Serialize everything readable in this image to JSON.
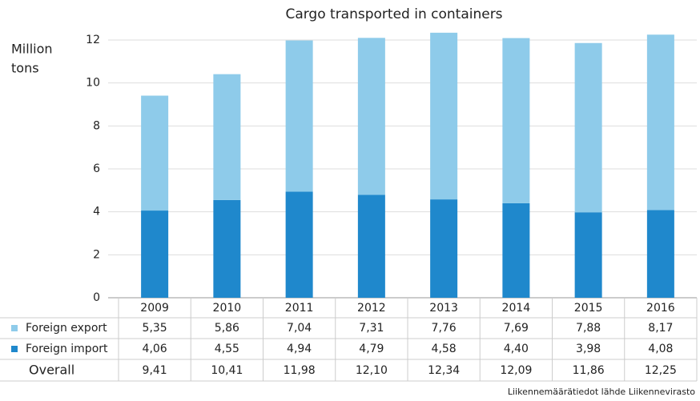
{
  "chart_data": {
    "type": "stacked_bar",
    "title": "Cargo transported in containers",
    "y_label": [
      "Million",
      "tons"
    ],
    "categories": [
      "2009",
      "2010",
      "2011",
      "2012",
      "2013",
      "2014",
      "2015",
      "2016"
    ],
    "series": [
      {
        "name": "Foreign export",
        "color": "#8ecbea",
        "values": [
          5.35,
          5.86,
          7.04,
          7.31,
          7.76,
          7.69,
          7.88,
          8.17
        ],
        "value_labels": [
          "5,35",
          "5,86",
          "7,04",
          "7,31",
          "7,76",
          "7,69",
          "7,88",
          "8,17"
        ]
      },
      {
        "name": "Foreign import",
        "color": "#1f88cc",
        "values": [
          4.06,
          4.55,
          4.94,
          4.79,
          4.58,
          4.4,
          3.98,
          4.08
        ],
        "value_labels": [
          "4,06",
          "4,55",
          "4,94",
          "4,79",
          "4,58",
          "4,40",
          "3,98",
          "4,08"
        ]
      }
    ],
    "overall": {
      "name": "Overall",
      "values": [
        9.41,
        10.41,
        11.98,
        12.1,
        12.34,
        12.09,
        11.86,
        12.25
      ],
      "value_labels": [
        "9,41",
        "10,41",
        "11,98",
        "12,10",
        "12,34",
        "12,09",
        "11,86",
        "12,25"
      ]
    },
    "ylim": [
      0,
      12
    ],
    "yticks": [
      0,
      2,
      4,
      6,
      8,
      10,
      12
    ],
    "grid": true,
    "source": "Liikennemäärätiedot lähde Liikennevirasto"
  }
}
